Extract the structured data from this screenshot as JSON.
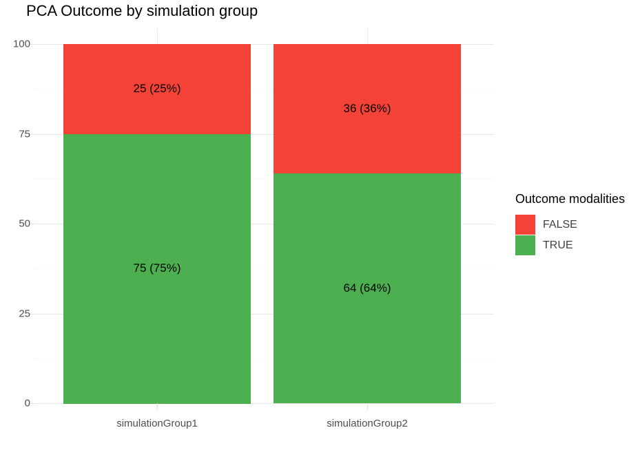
{
  "title": "PCA Outcome by simulation group",
  "chart_data": {
    "type": "bar",
    "stacked": true,
    "orientation": "vertical",
    "title": "PCA Outcome by simulation group",
    "categories": [
      "simulationGroup1",
      "simulationGroup2"
    ],
    "series": [
      {
        "name": "FALSE",
        "color": "#F44336",
        "values": [
          25,
          36
        ],
        "data_labels": [
          "25 (25%)",
          "36 (36%)"
        ]
      },
      {
        "name": "TRUE",
        "color": "#4CAF50",
        "values": [
          75,
          64
        ],
        "data_labels": [
          "75 (75%)",
          "64 (64%)"
        ]
      }
    ],
    "xlabel": "",
    "ylabel": "",
    "ylim": [
      0,
      100
    ],
    "yticks": [
      0,
      25,
      50,
      75,
      100
    ],
    "grid": true,
    "minor_grid": true,
    "legend_title": "Outcome modalities",
    "legend_position": "right",
    "legend": [
      {
        "label": "FALSE",
        "color": "#F44336"
      },
      {
        "label": "TRUE",
        "color": "#4CAF50"
      }
    ]
  },
  "colors": {
    "false_fill": "#F44336",
    "true_fill": "#4CAF50",
    "grid_major": "#E9E9E9",
    "grid_minor": "#F5F5F5",
    "axis_text": "#4D4D4D",
    "tick_mark": "#DEDEDE",
    "title_text": "#000000",
    "legend_text": "#404040",
    "background": "#FFFFFF"
  }
}
